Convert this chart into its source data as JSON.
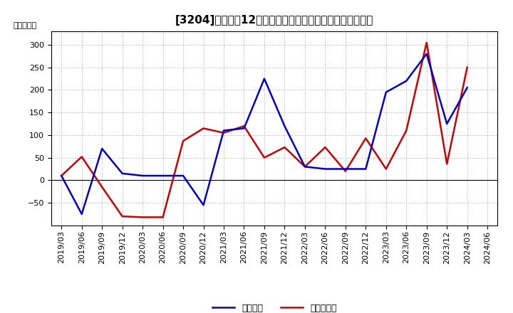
{
  "title": "[3204]　利益の12か月移動合計の対前年同期増減額の推移",
  "ylabel": "（百万円）",
  "legend_labels": [
    "経常利益",
    "当期純利益"
  ],
  "x_labels": [
    "2019/03",
    "2019/06",
    "2019/09",
    "2019/12",
    "2020/03",
    "2020/06",
    "2020/09",
    "2020/12",
    "2021/03",
    "2021/06",
    "2021/09",
    "2021/12",
    "2022/03",
    "2022/06",
    "2022/09",
    "2022/12",
    "2023/03",
    "2023/06",
    "2023/09",
    "2023/12",
    "2024/03",
    "2024/06"
  ],
  "keijo_rieki": [
    10,
    -75,
    70,
    15,
    10,
    10,
    10,
    -55,
    110,
    115,
    225,
    120,
    30,
    25,
    25,
    25,
    195,
    220,
    280,
    125,
    205,
    null
  ],
  "touki_jun_rieki": [
    10,
    52,
    -15,
    -80,
    -82,
    -82,
    87,
    115,
    105,
    120,
    50,
    73,
    30,
    73,
    20,
    93,
    25,
    110,
    305,
    36,
    250,
    null
  ],
  "line_color_keijo": "#0000cc",
  "line_color_touki": "#cc0000",
  "ylim_min": -100,
  "ylim_max": 330,
  "yticks": [
    -50,
    0,
    50,
    100,
    150,
    200,
    250,
    300
  ],
  "bg_color": "#ffffff",
  "grid_color": "#aaaaaa",
  "title_fontsize": 11,
  "axis_fontsize": 8,
  "line_width": 1.8
}
